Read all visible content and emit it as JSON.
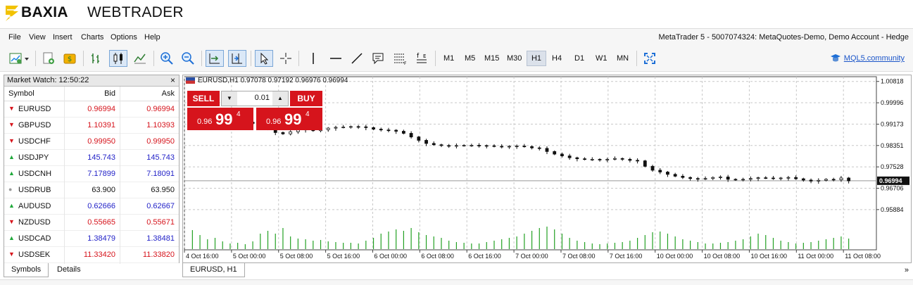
{
  "brand": {
    "bold": "BAXIA",
    "light": "WEBTRADER",
    "logo_color": "#f2c200"
  },
  "menu": {
    "items": [
      "File",
      "View",
      "Insert",
      "Charts",
      "Options",
      "Help"
    ],
    "window_title": "MetaTrader 5 - 5007074324: MetaQuotes-Demo, Demo Account - Hedge"
  },
  "toolbar": {
    "icons": [
      "new-chart-icon",
      "new-order-icon",
      "algo-trading-icon",
      "bar-chart-icon",
      "candlestick-chart-icon",
      "line-chart-icon",
      "zoom-in-icon",
      "zoom-out-icon",
      "autoscroll-icon",
      "chart-shift-icon",
      "cursor-icon",
      "crosshair-icon",
      "vertical-line-icon",
      "horizontal-line-icon",
      "trendline-icon",
      "text-icon",
      "fibonacci-icon",
      "indicators-icon",
      "fullscreen-icon"
    ],
    "timeframes": [
      "M1",
      "M5",
      "M15",
      "M30",
      "H1",
      "H4",
      "D1",
      "W1",
      "MN"
    ],
    "active_timeframe": "H1",
    "mql_link": "MQL5.community"
  },
  "market_watch": {
    "title": "Market Watch: 12:50:22",
    "columns": {
      "symbol": "Symbol",
      "bid": "Bid",
      "ask": "Ask"
    },
    "rows": [
      {
        "symbol": "EURUSD",
        "bid": "0.96994",
        "ask": "0.96994",
        "dir": "down",
        "color": "#d6141c"
      },
      {
        "symbol": "GBPUSD",
        "bid": "1.10391",
        "ask": "1.10393",
        "dir": "down",
        "color": "#d6141c"
      },
      {
        "symbol": "USDCHF",
        "bid": "0.99950",
        "ask": "0.99950",
        "dir": "down",
        "color": "#d6141c"
      },
      {
        "symbol": "USDJPY",
        "bid": "145.743",
        "ask": "145.743",
        "dir": "up",
        "color": "#2323c8"
      },
      {
        "symbol": "USDCNH",
        "bid": "7.17899",
        "ask": "7.18091",
        "dir": "up",
        "color": "#2323c8"
      },
      {
        "symbol": "USDRUB",
        "bid": "63.900",
        "ask": "63.950",
        "dir": "neutral",
        "color": "#111111"
      },
      {
        "symbol": "AUDUSD",
        "bid": "0.62666",
        "ask": "0.62667",
        "dir": "up",
        "color": "#2323c8"
      },
      {
        "symbol": "NZDUSD",
        "bid": "0.55665",
        "ask": "0.55671",
        "dir": "down",
        "color": "#d6141c"
      },
      {
        "symbol": "USDCAD",
        "bid": "1.38479",
        "ask": "1.38481",
        "dir": "up",
        "color": "#2323c8"
      },
      {
        "symbol": "USDSEK",
        "bid": "11.33420",
        "ask": "11.33820",
        "dir": "down",
        "color": "#d6141c"
      }
    ],
    "tabs": [
      "Symbols",
      "Details"
    ],
    "active_tab": "Symbols"
  },
  "chart": {
    "info": "EURUSD,H1  0.97078 0.97192 0.96976 0.96994",
    "trade": {
      "sell": "SELL",
      "buy": "BUY",
      "lot": "0.01",
      "sell_pre": "0.96",
      "sell_big": "99",
      "sell_sup": "4",
      "buy_pre": "0.96",
      "buy_big": "99",
      "buy_sup": "4"
    },
    "tab": "EURUSD, H1",
    "more": "»"
  },
  "chart_data": {
    "type": "candlestick",
    "symbol": "EURUSD",
    "timeframe": "H1",
    "ylim": [
      0.955,
      1.01
    ],
    "y_ticks": [
      "1.00818",
      "0.99996",
      "0.99173",
      "0.98351",
      "0.97528",
      "0.96706",
      "0.95884"
    ],
    "current_price": "0.96994",
    "x_ticks": [
      "4 Oct 16:00",
      "5 Oct 00:00",
      "5 Oct 08:00",
      "5 Oct 16:00",
      "6 Oct 00:00",
      "6 Oct 08:00",
      "6 Oct 16:00",
      "7 Oct 00:00",
      "7 Oct 08:00",
      "7 Oct 16:00",
      "10 Oct 00:00",
      "10 Oct 08:00",
      "10 Oct 16:00",
      "11 Oct 00:00",
      "11 Oct 08:00"
    ],
    "close_series": [
      0.9925,
      0.9936,
      0.994,
      0.9938,
      0.9935,
      0.993,
      0.9928,
      0.9925,
      0.992,
      0.9912,
      0.9902,
      0.9885,
      0.988,
      0.9888,
      0.9895,
      0.9898,
      0.9892,
      0.9896,
      0.9902,
      0.9905,
      0.9906,
      0.9908,
      0.9907,
      0.9904,
      0.9898,
      0.9895,
      0.9894,
      0.989,
      0.9882,
      0.9868,
      0.9855,
      0.9843,
      0.9838,
      0.9835,
      0.9834,
      0.9835,
      0.9836,
      0.9836,
      0.9835,
      0.9834,
      0.9832,
      0.983,
      0.9832,
      0.9833,
      0.9831,
      0.9826,
      0.9824,
      0.9812,
      0.9802,
      0.9795,
      0.9788,
      0.9784,
      0.9782,
      0.9782,
      0.9781,
      0.9782,
      0.9785,
      0.9782,
      0.9778,
      0.9776,
      0.9755,
      0.974,
      0.9733,
      0.9724,
      0.9717,
      0.9712,
      0.9708,
      0.9706,
      0.9708,
      0.9712,
      0.9714,
      0.9705,
      0.9703,
      0.9705,
      0.9708,
      0.9711,
      0.971,
      0.9709,
      0.971,
      0.9712,
      0.9707,
      0.9702,
      0.9698,
      0.9701,
      0.9705,
      0.9703,
      0.971,
      0.9699
    ],
    "volume_series": [
      27,
      20,
      14,
      16,
      11,
      8,
      9,
      7,
      11,
      22,
      26,
      22,
      30,
      18,
      15,
      14,
      12,
      13,
      11,
      10,
      9,
      9,
      8,
      12,
      16,
      22,
      25,
      28,
      26,
      30,
      24,
      20,
      18,
      16,
      12,
      10,
      9,
      8,
      8,
      10,
      12,
      14,
      16,
      18,
      22,
      26,
      30,
      32,
      28,
      22,
      16,
      12,
      10,
      8,
      7,
      8,
      9,
      10,
      12,
      16,
      20,
      24,
      25,
      22,
      18,
      14,
      12,
      10,
      8,
      8,
      9,
      10,
      12,
      14,
      18,
      22,
      20,
      16,
      12,
      10,
      8,
      9,
      10,
      12,
      14,
      16,
      18,
      15
    ],
    "grid": true
  }
}
